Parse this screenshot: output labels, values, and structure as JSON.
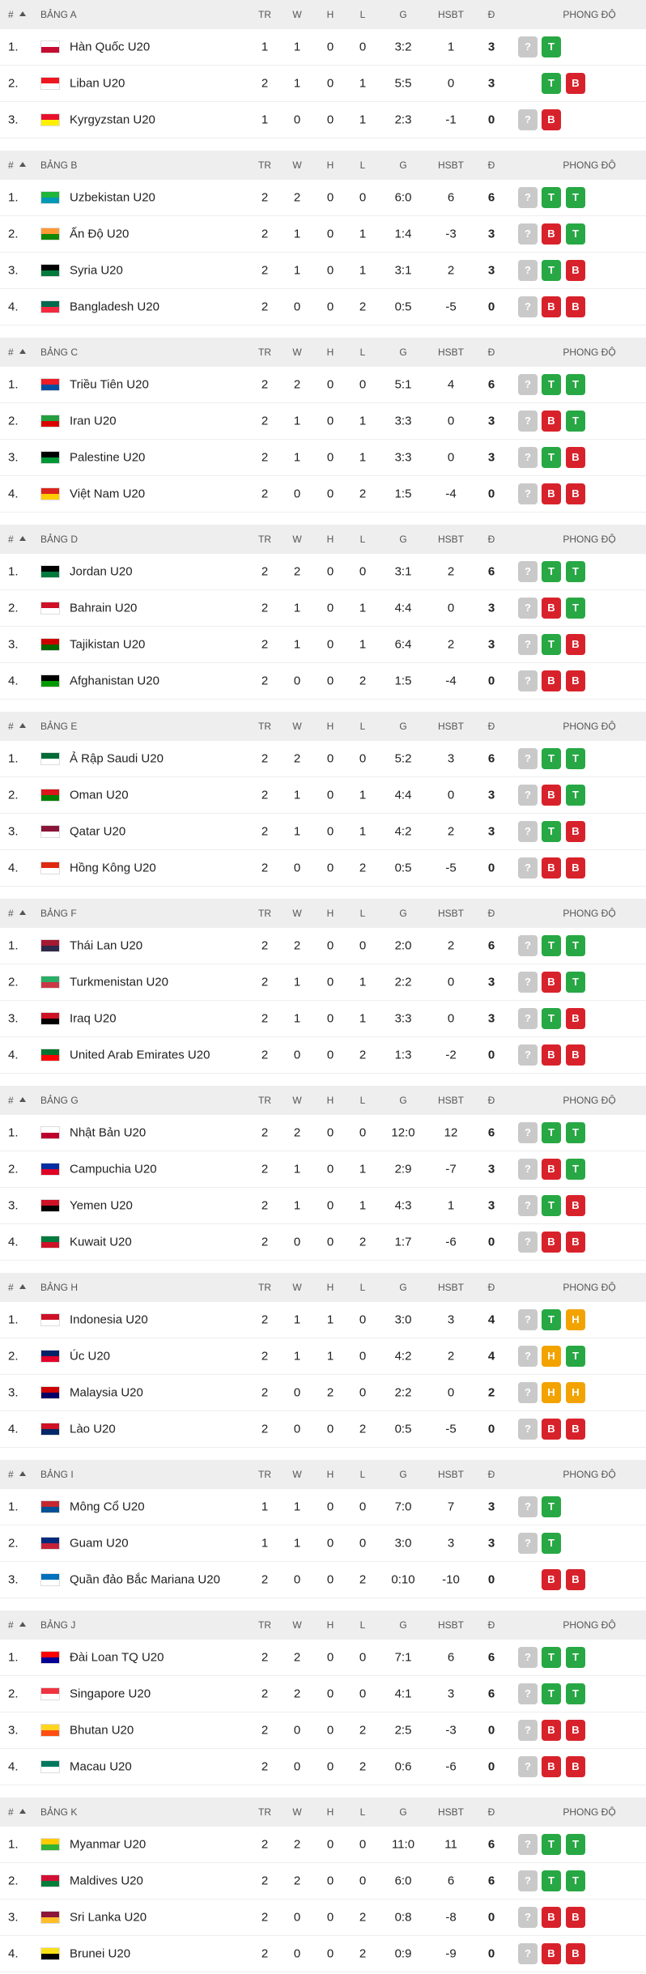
{
  "columns": {
    "rank": "#",
    "tr": "TR",
    "w": "W",
    "h": "H",
    "l": "L",
    "g": "G",
    "hsbt": "HSBT",
    "d": "Đ",
    "form": "PHONG ĐỘ"
  },
  "form_colors": {
    "?": "#c9c9c9",
    "T": "#27a844",
    "B": "#d8222b",
    "H": "#f2a300"
  },
  "groups": [
    {
      "name": "BẢNG A",
      "rows": [
        [
          "1.",
          "Hàn Quốc U20",
          1,
          1,
          0,
          0,
          "3:2",
          1,
          3,
          "?",
          "T",
          null,
          [
            "#ffffff",
            "#c60c30"
          ]
        ],
        [
          "2.",
          "Liban U20",
          2,
          1,
          0,
          1,
          "5:5",
          0,
          3,
          null,
          "T",
          "B",
          [
            "#ee161f",
            "#ffffff"
          ]
        ],
        [
          "3.",
          "Kyrgyzstan U20",
          1,
          0,
          0,
          1,
          "2:3",
          -1,
          0,
          "?",
          "B",
          null,
          [
            "#e8112d",
            "#ffef00"
          ]
        ]
      ]
    },
    {
      "name": "BẢNG B",
      "rows": [
        [
          "1.",
          "Uzbekistan U20",
          2,
          2,
          0,
          0,
          "6:0",
          6,
          6,
          "?",
          "T",
          "T",
          [
            "#1eb53a",
            "#0099b5"
          ]
        ],
        [
          "2.",
          "Ấn Độ U20",
          2,
          1,
          0,
          1,
          "1:4",
          -3,
          3,
          "?",
          "B",
          "T",
          [
            "#ff9933",
            "#138808"
          ]
        ],
        [
          "3.",
          "Syria U20",
          2,
          1,
          0,
          1,
          "3:1",
          2,
          3,
          "?",
          "T",
          "B",
          [
            "#000000",
            "#007a3d"
          ]
        ],
        [
          "4.",
          "Bangladesh U20",
          2,
          0,
          0,
          2,
          "0:5",
          -5,
          0,
          "?",
          "B",
          "B",
          [
            "#006a4e",
            "#f42a41"
          ]
        ]
      ]
    },
    {
      "name": "BẢNG C",
      "rows": [
        [
          "1.",
          "Triều Tiên U20",
          2,
          2,
          0,
          0,
          "5:1",
          4,
          6,
          "?",
          "T",
          "T",
          [
            "#ed1c27",
            "#024fa2"
          ]
        ],
        [
          "2.",
          "Iran U20",
          2,
          1,
          0,
          1,
          "3:3",
          0,
          3,
          "?",
          "B",
          "T",
          [
            "#239f40",
            "#da0000"
          ]
        ],
        [
          "3.",
          "Palestine U20",
          2,
          1,
          0,
          1,
          "3:3",
          0,
          3,
          "?",
          "T",
          "B",
          [
            "#000000",
            "#009736"
          ]
        ],
        [
          "4.",
          "Việt Nam U20",
          2,
          0,
          0,
          2,
          "1:5",
          -4,
          0,
          "?",
          "B",
          "B",
          [
            "#da251d",
            "#ffcd00"
          ]
        ]
      ]
    },
    {
      "name": "BẢNG D",
      "rows": [
        [
          "1.",
          "Jordan U20",
          2,
          2,
          0,
          0,
          "3:1",
          2,
          6,
          "?",
          "T",
          "T",
          [
            "#000000",
            "#007a3d"
          ]
        ],
        [
          "2.",
          "Bahrain U20",
          2,
          1,
          0,
          1,
          "4:4",
          0,
          3,
          "?",
          "B",
          "T",
          [
            "#ce1126",
            "#ffffff"
          ]
        ],
        [
          "3.",
          "Tajikistan U20",
          2,
          1,
          0,
          1,
          "6:4",
          2,
          3,
          "?",
          "T",
          "B",
          [
            "#cc0000",
            "#006600"
          ]
        ],
        [
          "4.",
          "Afghanistan U20",
          2,
          0,
          0,
          2,
          "1:5",
          -4,
          0,
          "?",
          "B",
          "B",
          [
            "#000000",
            "#009900"
          ]
        ]
      ]
    },
    {
      "name": "BẢNG E",
      "rows": [
        [
          "1.",
          "Ả Rập Saudi U20",
          2,
          2,
          0,
          0,
          "5:2",
          3,
          6,
          "?",
          "T",
          "T",
          [
            "#006c35",
            "#ffffff"
          ]
        ],
        [
          "2.",
          "Oman U20",
          2,
          1,
          0,
          1,
          "4:4",
          0,
          3,
          "?",
          "B",
          "T",
          [
            "#db161b",
            "#008000"
          ]
        ],
        [
          "3.",
          "Qatar U20",
          2,
          1,
          0,
          1,
          "4:2",
          2,
          3,
          "?",
          "T",
          "B",
          [
            "#8a1538",
            "#ffffff"
          ]
        ],
        [
          "4.",
          "Hồng Kông U20",
          2,
          0,
          0,
          2,
          "0:5",
          -5,
          0,
          "?",
          "B",
          "B",
          [
            "#de2910",
            "#ffffff"
          ]
        ]
      ]
    },
    {
      "name": "BẢNG F",
      "rows": [
        [
          "1.",
          "Thái Lan U20",
          2,
          2,
          0,
          0,
          "2:0",
          2,
          6,
          "?",
          "T",
          "T",
          [
            "#a51931",
            "#2d2a4a"
          ]
        ],
        [
          "2.",
          "Turkmenistan U20",
          2,
          1,
          0,
          1,
          "2:2",
          0,
          3,
          "?",
          "B",
          "T",
          [
            "#28ae66",
            "#ca3745"
          ]
        ],
        [
          "3.",
          "Iraq U20",
          2,
          1,
          0,
          1,
          "3:3",
          0,
          3,
          "?",
          "T",
          "B",
          [
            "#ce1126",
            "#000000"
          ]
        ],
        [
          "4.",
          "United Arab Emirates U20",
          2,
          0,
          0,
          2,
          "1:3",
          -2,
          0,
          "?",
          "B",
          "B",
          [
            "#00732f",
            "#ff0000"
          ]
        ]
      ]
    },
    {
      "name": "BẢNG G",
      "rows": [
        [
          "1.",
          "Nhật Bản U20",
          2,
          2,
          0,
          0,
          "12:0",
          12,
          6,
          "?",
          "T",
          "T",
          [
            "#ffffff",
            "#bc002d"
          ]
        ],
        [
          "2.",
          "Campuchia U20",
          2,
          1,
          0,
          1,
          "2:9",
          -7,
          3,
          "?",
          "B",
          "T",
          [
            "#032ea1",
            "#e00025"
          ]
        ],
        [
          "3.",
          "Yemen U20",
          2,
          1,
          0,
          1,
          "4:3",
          1,
          3,
          "?",
          "T",
          "B",
          [
            "#ce1126",
            "#000000"
          ]
        ],
        [
          "4.",
          "Kuwait U20",
          2,
          0,
          0,
          2,
          "1:7",
          -6,
          0,
          "?",
          "B",
          "B",
          [
            "#007a3d",
            "#ce1126"
          ]
        ]
      ]
    },
    {
      "name": "BẢNG H",
      "rows": [
        [
          "1.",
          "Indonesia U20",
          2,
          1,
          1,
          0,
          "3:0",
          3,
          4,
          "?",
          "T",
          "H",
          [
            "#ce1126",
            "#ffffff"
          ]
        ],
        [
          "2.",
          "Úc U20",
          2,
          1,
          1,
          0,
          "4:2",
          2,
          4,
          "?",
          "H",
          "T",
          [
            "#012169",
            "#e4002b"
          ]
        ],
        [
          "3.",
          "Malaysia U20",
          2,
          0,
          2,
          0,
          "2:2",
          0,
          2,
          "?",
          "H",
          "H",
          [
            "#cc0001",
            "#010066"
          ]
        ],
        [
          "4.",
          "Lào U20",
          2,
          0,
          0,
          2,
          "0:5",
          -5,
          0,
          "?",
          "B",
          "B",
          [
            "#ce1126",
            "#002868"
          ]
        ]
      ]
    },
    {
      "name": "BẢNG I",
      "rows": [
        [
          "1.",
          "Mông Cổ U20",
          1,
          1,
          0,
          0,
          "7:0",
          7,
          3,
          "?",
          "T",
          null,
          [
            "#c4272f",
            "#015197"
          ]
        ],
        [
          "2.",
          "Guam U20",
          1,
          1,
          0,
          0,
          "3:0",
          3,
          3,
          "?",
          "T",
          null,
          [
            "#00297b",
            "#c62139"
          ]
        ],
        [
          "3.",
          "Quần đảo Bắc Mariana U20",
          2,
          0,
          0,
          2,
          "0:10",
          -10,
          0,
          null,
          "B",
          "B",
          [
            "#0071bc",
            "#ffffff"
          ]
        ]
      ]
    },
    {
      "name": "BẢNG J",
      "rows": [
        [
          "1.",
          "Đài Loan TQ U20",
          2,
          2,
          0,
          0,
          "7:1",
          6,
          6,
          "?",
          "T",
          "T",
          [
            "#fe0000",
            "#000095"
          ]
        ],
        [
          "2.",
          "Singapore U20",
          2,
          2,
          0,
          0,
          "4:1",
          3,
          6,
          "?",
          "T",
          "T",
          [
            "#ef3340",
            "#ffffff"
          ]
        ],
        [
          "3.",
          "Bhutan U20",
          2,
          0,
          0,
          2,
          "2:5",
          -3,
          0,
          "?",
          "B",
          "B",
          [
            "#ffd520",
            "#ff4e12"
          ]
        ],
        [
          "4.",
          "Macau U20",
          2,
          0,
          0,
          2,
          "0:6",
          -6,
          0,
          "?",
          "B",
          "B",
          [
            "#00785e",
            "#ffffff"
          ]
        ]
      ]
    },
    {
      "name": "BẢNG K",
      "rows": [
        [
          "1.",
          "Myanmar U20",
          2,
          2,
          0,
          0,
          "11:0",
          11,
          6,
          "?",
          "T",
          "T",
          [
            "#fecb00",
            "#34b233"
          ]
        ],
        [
          "2.",
          "Maldives U20",
          2,
          2,
          0,
          0,
          "6:0",
          6,
          6,
          "?",
          "T",
          "T",
          [
            "#d21034",
            "#007e3a"
          ]
        ],
        [
          "3.",
          "Sri Lanka U20",
          2,
          0,
          0,
          2,
          "0:8",
          -8,
          0,
          "?",
          "B",
          "B",
          [
            "#8d153a",
            "#ffbe29"
          ]
        ],
        [
          "4.",
          "Brunei U20",
          2,
          0,
          0,
          2,
          "0:9",
          -9,
          0,
          "?",
          "B",
          "B",
          [
            "#f7e017",
            "#000000"
          ]
        ]
      ]
    }
  ]
}
